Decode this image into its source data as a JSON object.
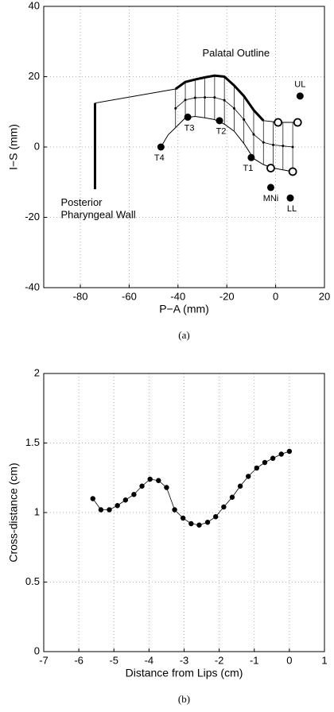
{
  "chart_data": [
    {
      "type": "line",
      "caption": "(a)",
      "x_label": "P−A (mm)",
      "y_label": "I−S (mm)",
      "xlim": [
        -95,
        20
      ],
      "ylim": [
        -40,
        40
      ],
      "xticks": [
        -80,
        -60,
        -40,
        -20,
        0,
        20
      ],
      "yticks": [
        -40,
        -20,
        0,
        20,
        40
      ],
      "grid": true,
      "annotations": [
        "Palatal Outline",
        "Posterior",
        "Pharyngeal Wall"
      ],
      "lines": [
        {
          "x": [
            -74,
            -74
          ],
          "y": [
            -12,
            12.5
          ],
          "width": 3
        },
        {
          "x": [
            -74,
            -41
          ],
          "y": [
            12.5,
            16.5
          ],
          "width": 1
        },
        {
          "x": [
            -41,
            -37,
            -33,
            -29,
            -25,
            -21,
            -17,
            -13,
            -9,
            -5
          ],
          "y": [
            16.5,
            18.5,
            19.2,
            19.8,
            20.3,
            20,
            17.5,
            14.5,
            10.5,
            7.5
          ],
          "width": 3
        },
        {
          "x": [
            -5,
            -1,
            3,
            7,
            9
          ],
          "y": [
            7.5,
            7.2,
            7,
            7,
            7
          ],
          "width": 1
        },
        {
          "x": [
            -47,
            -44,
            -41,
            -37,
            -33,
            -29,
            -25,
            -21,
            -17,
            -13,
            -9,
            -5,
            -1,
            3,
            7
          ],
          "y": [
            0,
            3.5,
            5.5,
            8.3,
            8.7,
            8.3,
            7.8,
            6.5,
            4.5,
            1,
            -3.3,
            -5,
            -6,
            -6.5,
            -7
          ],
          "width": 1
        }
      ],
      "hatch": {
        "x": [
          -41,
          -37,
          -33,
          -29,
          -25,
          -21,
          -17,
          -13,
          -9,
          -5,
          -1,
          3,
          7
        ],
        "top": [
          16.5,
          18.5,
          19.2,
          19.8,
          20.3,
          20,
          17.5,
          14.5,
          10.5,
          7.5,
          7.2,
          7,
          7
        ],
        "bottom": [
          5.5,
          8.3,
          8.7,
          8.3,
          7.8,
          6.5,
          4.5,
          1,
          -3.3,
          -5,
          -6,
          -6.5,
          -7
        ],
        "mid": [
          11,
          13.4,
          14,
          14.1,
          14.1,
          13.3,
          11,
          7.8,
          3.6,
          1.3,
          0.6,
          0.3,
          0
        ]
      },
      "points": [
        {
          "x": -47,
          "y": 0,
          "label": "T4",
          "filled": true
        },
        {
          "x": -36,
          "y": 8.5,
          "label": "T3",
          "filled": true
        },
        {
          "x": -23,
          "y": 7.5,
          "label": "T2",
          "filled": true
        },
        {
          "x": -10,
          "y": -3,
          "label": "T1",
          "filled": true
        },
        {
          "x": -2,
          "y": -11.5,
          "label": "MNi",
          "filled": true
        },
        {
          "x": 6,
          "y": -14.5,
          "label": "LL",
          "filled": true
        },
        {
          "x": 10,
          "y": 14.5,
          "label": "UL",
          "filled": true
        },
        {
          "x": 1,
          "y": 7,
          "filled": false
        },
        {
          "x": 9,
          "y": 7,
          "filled": false
        },
        {
          "x": -2,
          "y": -6,
          "filled": false
        },
        {
          "x": 7,
          "y": -7,
          "filled": false
        }
      ]
    },
    {
      "type": "line",
      "caption": "(b)",
      "x_label": "Distance from Lips (cm)",
      "y_label": "Cross-distance (cm)",
      "xlim": [
        -7,
        1
      ],
      "ylim": [
        0,
        2
      ],
      "xticks": [
        -7,
        -6,
        -5,
        -4,
        -3,
        -2,
        -1,
        0,
        1
      ],
      "yticks": [
        0,
        0.5,
        1,
        1.5,
        2
      ],
      "grid": true,
      "x": [
        -5.6,
        -5.37,
        -5.13,
        -4.9,
        -4.67,
        -4.43,
        -4.2,
        -3.97,
        -3.73,
        -3.5,
        -3.27,
        -3.03,
        -2.8,
        -2.57,
        -2.33,
        -2.1,
        -1.87,
        -1.63,
        -1.4,
        -1.17,
        -0.93,
        -0.7,
        -0.47,
        -0.23,
        0
      ],
      "series": [
        {
          "color": "#000000",
          "values": [
            1.1,
            1.02,
            1.02,
            1.05,
            1.09,
            1.13,
            1.19,
            1.24,
            1.23,
            1.18,
            1.02,
            0.96,
            0.92,
            0.91,
            0.93,
            0.97,
            1.04,
            1.11,
            1.19,
            1.26,
            1.32,
            1.36,
            1.39,
            1.42,
            1.44
          ]
        }
      ]
    }
  ]
}
